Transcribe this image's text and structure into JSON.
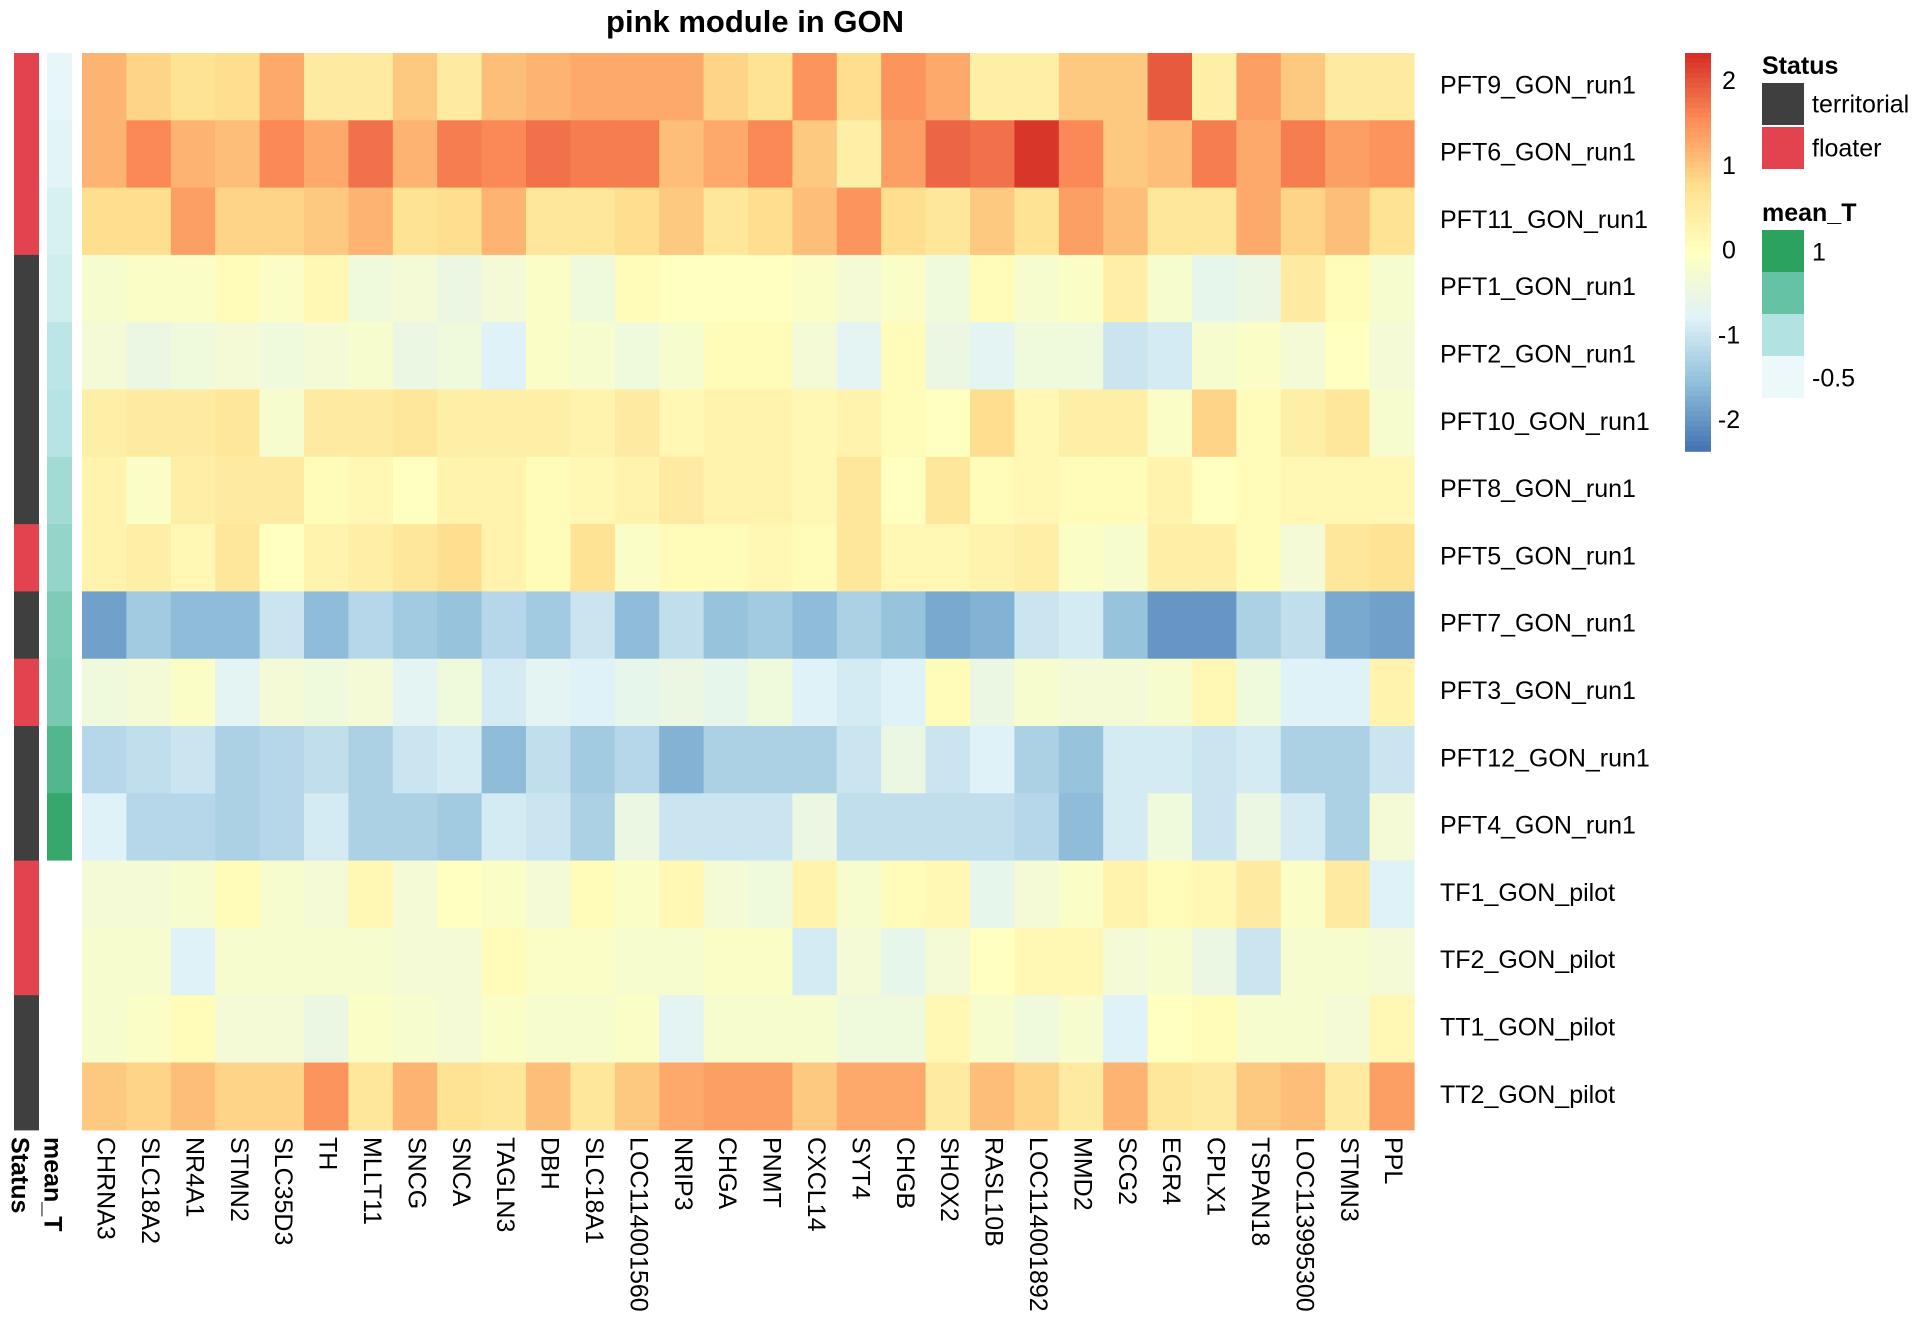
{
  "chart_data": {
    "type": "heatmap",
    "title": "pink module in GON",
    "rows": [
      "PFT9_GON_run1",
      "PFT6_GON_run1",
      "PFT11_GON_run1",
      "PFT1_GON_run1",
      "PFT2_GON_run1",
      "PFT10_GON_run1",
      "PFT8_GON_run1",
      "PFT5_GON_run1",
      "PFT7_GON_run1",
      "PFT3_GON_run1",
      "PFT12_GON_run1",
      "PFT4_GON_run1",
      "TF1_GON_pilot",
      "TF2_GON_pilot",
      "TT1_GON_pilot",
      "TT2_GON_pilot"
    ],
    "columns": [
      "CHRNA3",
      "SLC18A2",
      "NR4A1",
      "STMN2",
      "SLC35D3",
      "TH",
      "MLLT11",
      "SNCG",
      "SNCA",
      "TAGLN3",
      "DBH",
      "SLC18A1",
      "LOC114001560",
      "NRIP3",
      "CHGA",
      "PNMT",
      "CXCL14",
      "SYT4",
      "CHGB",
      "SHOX2",
      "RASL10B",
      "LOC114001892",
      "MMD2",
      "SCG2",
      "EGR4",
      "CPLX1",
      "TSPAN18",
      "LOC113995300",
      "STMN3",
      "PPL"
    ],
    "values": [
      [
        1.2,
        0.9,
        0.7,
        0.8,
        1.3,
        0.5,
        0.5,
        1.0,
        0.5,
        1.1,
        1.2,
        1.3,
        1.3,
        1.3,
        0.9,
        0.7,
        1.5,
        0.8,
        1.5,
        1.3,
        0.4,
        0.4,
        1.0,
        1.0,
        2.0,
        0.4,
        1.4,
        1.0,
        0.5,
        0.5
      ],
      [
        1.2,
        1.6,
        1.2,
        1.1,
        1.6,
        1.3,
        1.8,
        1.2,
        1.7,
        1.6,
        1.8,
        1.7,
        1.7,
        1.1,
        1.3,
        1.6,
        1.0,
        0.4,
        1.4,
        1.9,
        1.8,
        2.3,
        1.6,
        1.0,
        1.1,
        1.7,
        1.3,
        1.7,
        1.4,
        1.5
      ],
      [
        0.8,
        0.8,
        1.4,
        0.9,
        0.9,
        1.0,
        1.2,
        0.7,
        0.8,
        1.2,
        0.6,
        0.6,
        0.8,
        1.0,
        0.6,
        0.8,
        1.1,
        1.5,
        0.8,
        0.6,
        1.0,
        0.7,
        1.4,
        1.1,
        0.6,
        0.6,
        1.3,
        0.9,
        1.1,
        0.7
      ],
      [
        -0.2,
        -0.1,
        -0.1,
        0.1,
        -0.1,
        0.2,
        -0.4,
        -0.3,
        -0.5,
        -0.3,
        -0.1,
        -0.4,
        0.1,
        0.0,
        0.0,
        0.0,
        -0.1,
        -0.3,
        -0.1,
        -0.4,
        0.1,
        -0.2,
        -0.1,
        0.4,
        -0.2,
        -0.6,
        -0.5,
        0.5,
        0.1,
        -0.2
      ],
      [
        -0.3,
        -0.5,
        -0.4,
        -0.3,
        -0.4,
        -0.3,
        -0.2,
        -0.5,
        -0.4,
        -0.8,
        -0.1,
        -0.2,
        -0.4,
        -0.2,
        0.1,
        0.1,
        -0.3,
        -0.7,
        0.1,
        -0.5,
        -0.7,
        -0.4,
        -0.4,
        -1.0,
        -0.9,
        -0.2,
        -0.1,
        -0.3,
        0.0,
        -0.3
      ],
      [
        0.4,
        0.5,
        0.5,
        0.6,
        -0.2,
        0.5,
        0.5,
        0.6,
        0.4,
        0.4,
        0.4,
        0.3,
        0.5,
        0.2,
        0.3,
        0.3,
        0.2,
        0.3,
        0.1,
        0.0,
        0.8,
        0.2,
        0.4,
        0.4,
        -0.1,
        0.9,
        0.1,
        0.4,
        0.6,
        -0.2
      ],
      [
        0.3,
        -0.1,
        0.4,
        0.5,
        0.5,
        0.1,
        0.2,
        0.0,
        0.3,
        0.3,
        0.1,
        0.2,
        0.3,
        0.5,
        0.3,
        0.3,
        0.2,
        0.6,
        0.0,
        0.6,
        0.1,
        0.2,
        0.1,
        0.1,
        0.3,
        0.0,
        0.1,
        0.2,
        0.2,
        0.2
      ],
      [
        0.3,
        0.4,
        0.2,
        0.6,
        0.0,
        0.3,
        0.4,
        0.6,
        0.8,
        0.3,
        0.1,
        0.7,
        -0.1,
        0.1,
        0.1,
        0.2,
        0.1,
        0.6,
        0.2,
        0.2,
        0.3,
        0.4,
        -0.1,
        -0.2,
        0.4,
        0.4,
        0.1,
        -0.3,
        0.6,
        0.7
      ],
      [
        -1.9,
        -1.4,
        -1.6,
        -1.6,
        -1.0,
        -1.6,
        -1.2,
        -1.4,
        -1.5,
        -1.2,
        -1.4,
        -1.0,
        -1.6,
        -1.1,
        -1.5,
        -1.4,
        -1.6,
        -1.3,
        -1.5,
        -1.8,
        -1.7,
        -1.0,
        -0.9,
        -1.5,
        -2.0,
        -2.0,
        -1.3,
        -1.1,
        -1.8,
        -1.9
      ],
      [
        -0.4,
        -0.3,
        -0.1,
        -0.7,
        -0.3,
        -0.4,
        -0.3,
        -0.7,
        -0.4,
        -0.9,
        -0.7,
        -0.8,
        -0.6,
        -0.5,
        -0.6,
        -0.4,
        -0.8,
        -0.9,
        -0.8,
        0.1,
        -0.5,
        -0.2,
        -0.3,
        -0.3,
        -0.2,
        0.2,
        -0.4,
        -0.8,
        -0.8,
        0.3
      ],
      [
        -1.2,
        -1.1,
        -1.0,
        -1.3,
        -1.2,
        -1.1,
        -1.3,
        -1.0,
        -0.9,
        -1.6,
        -1.1,
        -1.4,
        -1.2,
        -1.7,
        -1.3,
        -1.3,
        -1.3,
        -1.0,
        -0.5,
        -1.0,
        -0.8,
        -1.3,
        -1.5,
        -0.9,
        -0.9,
        -1.0,
        -0.9,
        -1.3,
        -1.3,
        -1.0
      ],
      [
        -0.8,
        -1.2,
        -1.2,
        -1.3,
        -1.2,
        -0.9,
        -1.3,
        -1.3,
        -1.4,
        -0.9,
        -1.0,
        -1.3,
        -0.5,
        -1.0,
        -1.0,
        -1.0,
        -0.5,
        -1.1,
        -1.1,
        -1.1,
        -1.1,
        -1.2,
        -1.6,
        -0.9,
        -0.4,
        -1.0,
        -0.5,
        -0.9,
        -1.3,
        -0.3
      ],
      [
        -0.3,
        -0.3,
        -0.2,
        0.1,
        -0.2,
        -0.3,
        0.2,
        -0.3,
        0.0,
        -0.1,
        -0.3,
        0.1,
        -0.1,
        0.2,
        -0.3,
        -0.4,
        0.3,
        -0.2,
        0.1,
        0.2,
        -0.6,
        -0.3,
        -0.1,
        0.3,
        0.1,
        0.2,
        0.5,
        -0.1,
        0.5,
        -0.8
      ],
      [
        -0.2,
        -0.2,
        -0.8,
        -0.2,
        -0.2,
        -0.2,
        -0.2,
        -0.3,
        -0.3,
        0.1,
        -0.1,
        -0.1,
        -0.2,
        -0.2,
        -0.1,
        -0.1,
        -0.9,
        -0.3,
        -0.6,
        -0.3,
        0.0,
        0.2,
        0.2,
        -0.3,
        -0.2,
        -0.5,
        -1.0,
        -0.2,
        -0.2,
        -0.3
      ],
      [
        -0.2,
        -0.1,
        0.1,
        -0.3,
        -0.3,
        -0.5,
        -0.1,
        -0.2,
        -0.3,
        -0.1,
        -0.2,
        -0.2,
        -0.1,
        -0.7,
        -0.2,
        -0.2,
        -0.2,
        -0.4,
        -0.4,
        0.2,
        -0.2,
        -0.4,
        -0.2,
        -0.8,
        0.0,
        0.1,
        -0.2,
        -0.2,
        -0.3,
        0.2
      ],
      [
        1.0,
        0.9,
        1.1,
        0.9,
        0.9,
        1.5,
        0.6,
        1.2,
        0.7,
        0.6,
        1.1,
        0.6,
        1.0,
        1.3,
        1.4,
        1.4,
        1.0,
        1.3,
        1.3,
        0.5,
        1.1,
        0.9,
        0.5,
        1.2,
        0.6,
        0.5,
        1.0,
        1.1,
        0.5,
        1.4
      ]
    ],
    "annotations": {
      "status_title": "Status",
      "mean_t_title": "mean_T",
      "status": [
        "floater",
        "floater",
        "floater",
        "territorial",
        "territorial",
        "territorial",
        "territorial",
        "floater",
        "territorial",
        "floater",
        "territorial",
        "territorial",
        "floater",
        "floater",
        "territorial",
        "territorial"
      ],
      "mean_T": [
        -0.55,
        -0.5,
        -0.4,
        -0.35,
        -0.15,
        -0.1,
        0.05,
        0.15,
        0.3,
        0.35,
        0.65,
        0.9,
        null,
        null,
        null,
        null
      ]
    },
    "colorbar": {
      "ticks": [
        2,
        1,
        0,
        -1,
        -2
      ],
      "range": [
        -2.35,
        2.35
      ],
      "colors": [
        "#4575B4",
        "#91BFDB",
        "#E0F3F8",
        "#FFFFBF",
        "#FEE090",
        "#FC8D59",
        "#D73027"
      ]
    },
    "status_legend": {
      "title": "Status",
      "items": [
        {
          "label": "territorial",
          "color": "#3F3F3F"
        },
        {
          "label": "floater",
          "color": "#E2434E"
        }
      ]
    },
    "mean_t_legend": {
      "title": "mean_T",
      "labels": [
        "1",
        "-0.5"
      ],
      "colors": [
        "#2CA25F",
        "#66C2A4",
        "#B2E2E2",
        "#EDF8FB"
      ]
    }
  }
}
